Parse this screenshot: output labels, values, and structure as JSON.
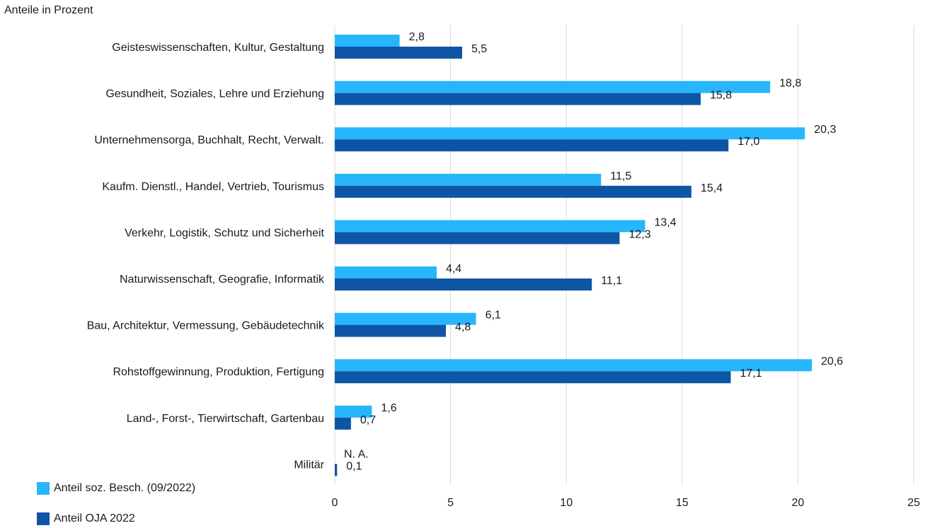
{
  "chart_data": {
    "type": "bar",
    "orientation": "horizontal",
    "unit_label": "Anteile in Prozent",
    "categories": [
      "Geisteswissenschaften, Kultur, Gestaltung",
      "Gesundheit, Soziales, Lehre und Erziehung",
      "Unternehmensorga, Buchhalt, Recht, Verwalt.",
      "Kaufm. Dienstl., Handel, Vertrieb, Tourismus",
      "Verkehr, Logistik, Schutz und Sicherheit",
      "Naturwissenschaft, Geografie, Informatik",
      "Bau, Architektur, Vermessung, Gebäudetechnik",
      "Rohstoffgewinnung, Produktion, Fertigung",
      "Land-, Forst-, Tierwirtschaft, Gartenbau",
      "Militär"
    ],
    "series": [
      {
        "name": "Anteil soz. Besch. (09/2022)",
        "color": "#27b6fb",
        "values": [
          2.8,
          18.8,
          20.3,
          11.5,
          13.4,
          4.4,
          6.1,
          20.6,
          1.6,
          null
        ],
        "labels": [
          "2,8",
          "18,8",
          "20,3",
          "11,5",
          "13,4",
          "4,4",
          "6,1",
          "20,6",
          "1,6",
          "N. A."
        ]
      },
      {
        "name": "Anteil OJA 2022",
        "color": "#0f55a6",
        "values": [
          5.5,
          15.8,
          17.0,
          15.4,
          12.3,
          11.1,
          4.8,
          17.1,
          0.7,
          0.1
        ],
        "labels": [
          "5,5",
          "15,8",
          "17,0",
          "15,4",
          "12,3",
          "11,1",
          "4,8",
          "17,1",
          "0,7",
          "0,1"
        ]
      }
    ],
    "xlim": [
      0,
      25
    ],
    "xticks": [
      0,
      5,
      10,
      15,
      20,
      25
    ],
    "xtick_labels": [
      "0",
      "5",
      "10",
      "15",
      "20",
      "25"
    ],
    "grid": "vertical",
    "legend_position": "bottom-left"
  }
}
